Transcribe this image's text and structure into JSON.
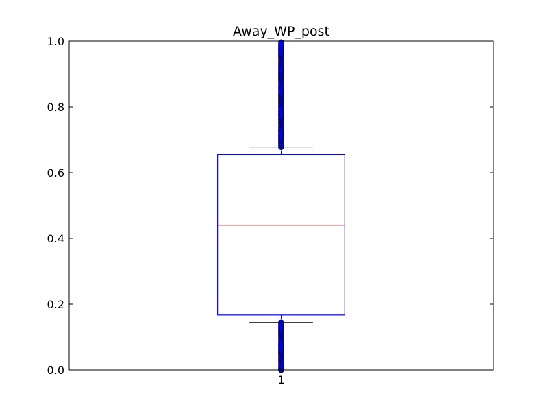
{
  "chart_data": {
    "type": "box",
    "title": "Away_WP_post",
    "xlabel": "",
    "ylabel": "",
    "ylim": [
      0,
      1
    ],
    "yticks": [
      "0.0",
      "0.2",
      "0.4",
      "0.6",
      "0.8",
      "1.0"
    ],
    "categories": [
      "1"
    ],
    "boxes": [
      {
        "label": "1",
        "q1": 0.167,
        "median": 0.44,
        "q3": 0.655,
        "whisker_low": 0.144,
        "whisker_high": 0.678,
        "outliers_low_range": [
          0.0,
          0.144
        ],
        "outliers_high_range": [
          0.678,
          1.0
        ]
      }
    ],
    "grid": false,
    "colors": {
      "box": "#0000ff",
      "median": "#ff0000",
      "whisker": "#0000ff",
      "cap": "#000000",
      "flier_fill": "#0000ff",
      "flier_edge": "#000000",
      "axes": "#000000"
    }
  }
}
